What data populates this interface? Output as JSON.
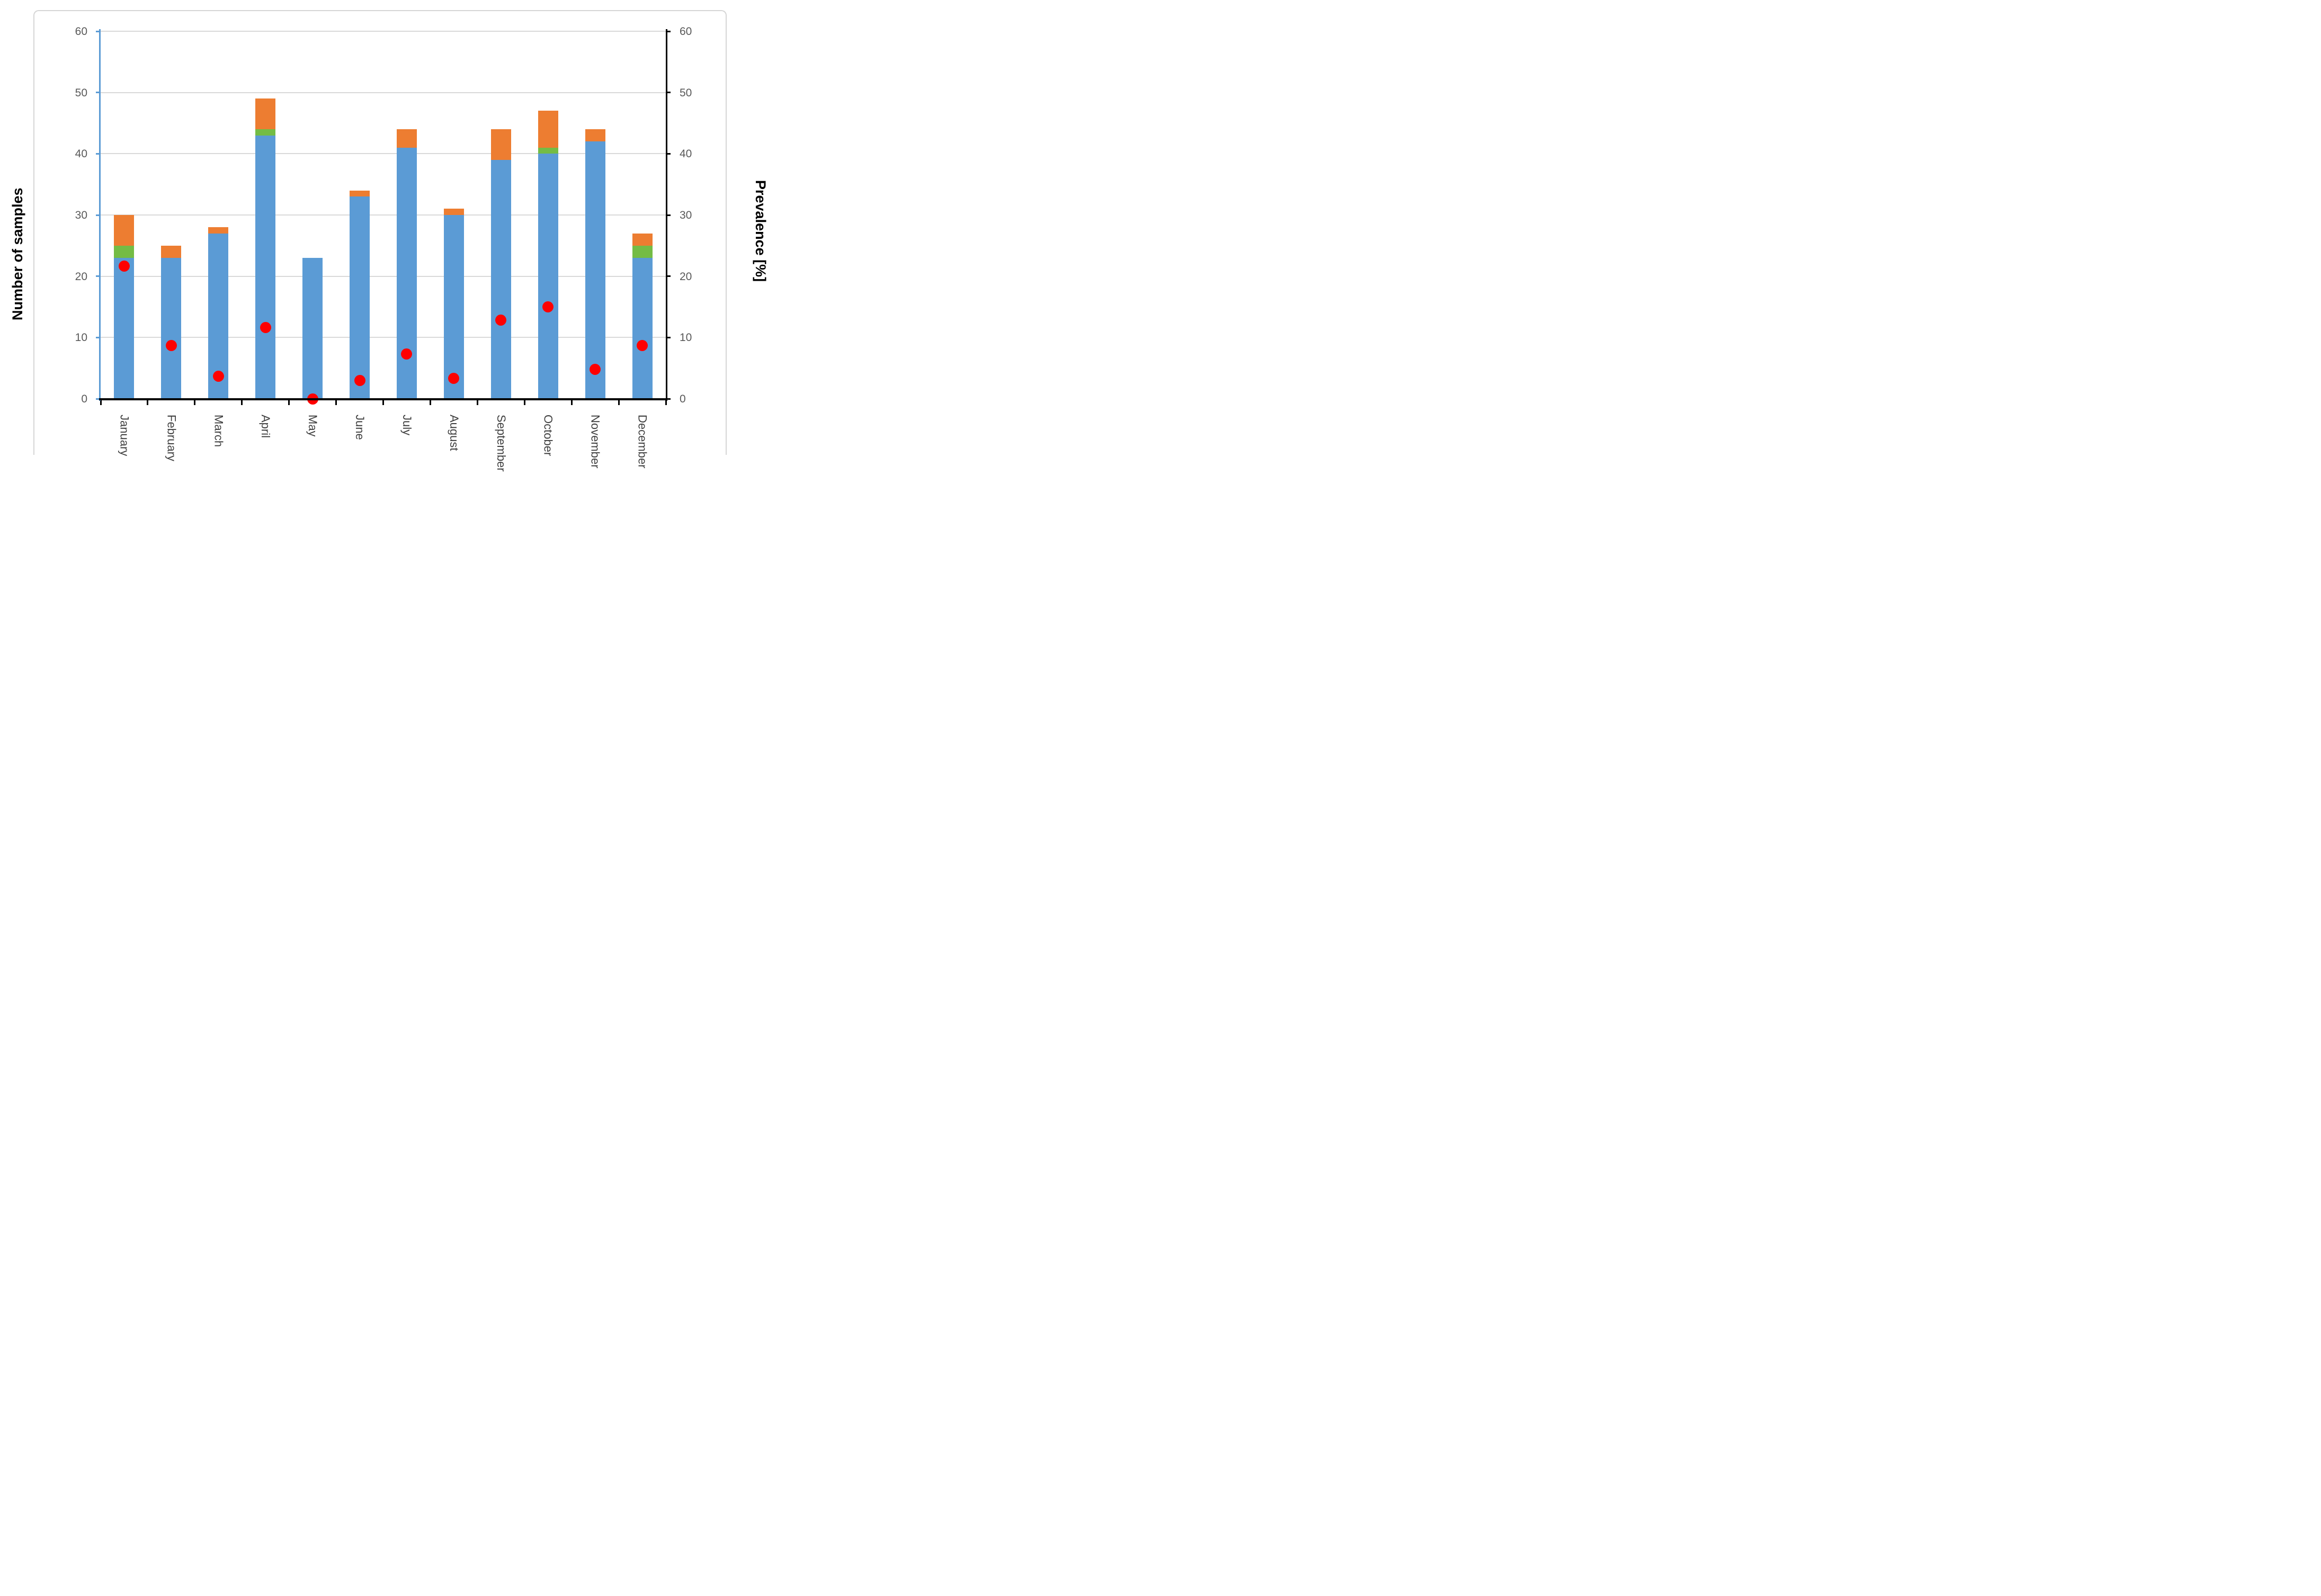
{
  "chart_data": {
    "type": "bar",
    "subtype": "stacked-bars-with-scatter-overlay",
    "categories": [
      "January",
      "February",
      "March",
      "April",
      "May",
      "June",
      "July",
      "August",
      "September",
      "October",
      "November",
      "December"
    ],
    "series": [
      {
        "name": "blue-bar-segment",
        "type": "bar",
        "stack": 1,
        "color": "#5B9BD5",
        "values": [
          23,
          23,
          27,
          43,
          23,
          33,
          41,
          30,
          39,
          40,
          42,
          23
        ]
      },
      {
        "name": "green-bar-segment",
        "type": "bar",
        "stack": 2,
        "color": "#74BC45",
        "values": [
          2,
          0,
          0,
          1,
          0,
          0,
          0,
          0,
          0,
          1,
          0,
          2
        ]
      },
      {
        "name": "orange-bar-segment",
        "type": "bar",
        "stack": 3,
        "color": "#ED7D31",
        "values": [
          5,
          2,
          1,
          5,
          0,
          1,
          3,
          1,
          5,
          6,
          2,
          2
        ]
      },
      {
        "name": "red-prevalence-dot",
        "type": "scatter",
        "color": "#FF0000",
        "values": [
          21.7,
          8.7,
          3.7,
          11.6,
          0,
          3.0,
          7.3,
          3.3,
          12.8,
          15.0,
          4.8,
          8.7
        ]
      }
    ],
    "bar_totals": [
      30,
      25,
      28,
      49,
      23,
      34,
      44,
      31,
      44,
      47,
      44,
      27
    ],
    "left_axis": {
      "title": "Number of samples",
      "min": 0,
      "max": 60,
      "step": 10,
      "ticks": [
        "0",
        "10",
        "20",
        "30",
        "40",
        "50",
        "60"
      ],
      "axis_color": "#5B9BD5",
      "label_color": "#595959"
    },
    "right_axis": {
      "title": "Prevalence [%]",
      "min": 0,
      "max": 60,
      "step": 10,
      "ticks": [
        "0",
        "10",
        "20",
        "30",
        "40",
        "50",
        "60"
      ],
      "axis_color": "#000000",
      "label_color": "#595959"
    },
    "x_axis": {
      "axis_color": "#000000"
    },
    "grid": true,
    "gridline_color": "#d9d9d9",
    "legend": "none",
    "frame_color": "#d6d6d6",
    "background": "#ffffff"
  }
}
